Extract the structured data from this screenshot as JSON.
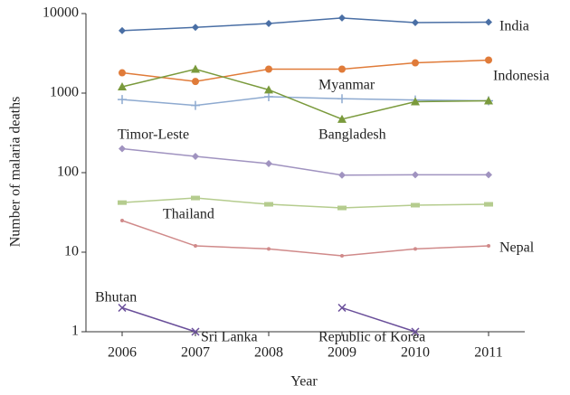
{
  "chart_data": {
    "type": "line",
    "x_label": "Year",
    "y_label": "Number of malaria deaths",
    "categories": [
      "2006",
      "2007",
      "2008",
      "2009",
      "2010",
      "2011"
    ],
    "log_scale": true,
    "ylim": [
      1,
      10000
    ],
    "yticks": [
      1,
      10,
      100,
      1000,
      10000
    ],
    "series": [
      {
        "name": "India",
        "color": "#4a6fa5",
        "marker": "diamond",
        "values": [
          6100,
          6700,
          7500,
          8800,
          7700,
          7800
        ]
      },
      {
        "name": "Indonesia",
        "color": "#e07b39",
        "marker": "circle",
        "values": [
          1800,
          1400,
          2000,
          2000,
          2400,
          2600
        ]
      },
      {
        "name": "Myanmar",
        "color": "#8eaad0",
        "marker": "plus",
        "values": [
          830,
          700,
          900,
          850,
          820,
          800
        ]
      },
      {
        "name": "Bangladesh",
        "color": "#7a9a3c",
        "marker": "triangle",
        "values": [
          1200,
          2000,
          1100,
          470,
          780,
          800
        ]
      },
      {
        "name": "Timor-Leste",
        "color": "#a093c0",
        "marker": "diamond",
        "values": [
          200,
          160,
          130,
          93,
          94,
          94
        ]
      },
      {
        "name": "Thailand",
        "color": "#b5cc8e",
        "marker": "rect",
        "values": [
          42,
          48,
          40,
          36,
          39,
          40
        ]
      },
      {
        "name": "Nepal",
        "color": "#d08a8a",
        "marker": "dot",
        "values": [
          25,
          12,
          11,
          9,
          11,
          12
        ]
      },
      {
        "name": "Bhutan",
        "color": "#6a4f9a",
        "marker": "x",
        "values": [
          2,
          1,
          null,
          null,
          null,
          null
        ]
      },
      {
        "name": "Republic of Korea",
        "color": "#6a4f9a",
        "marker": "x",
        "values": [
          null,
          null,
          null,
          2,
          1,
          null
        ]
      }
    ],
    "annotations": [
      "Sri Lanka"
    ]
  }
}
